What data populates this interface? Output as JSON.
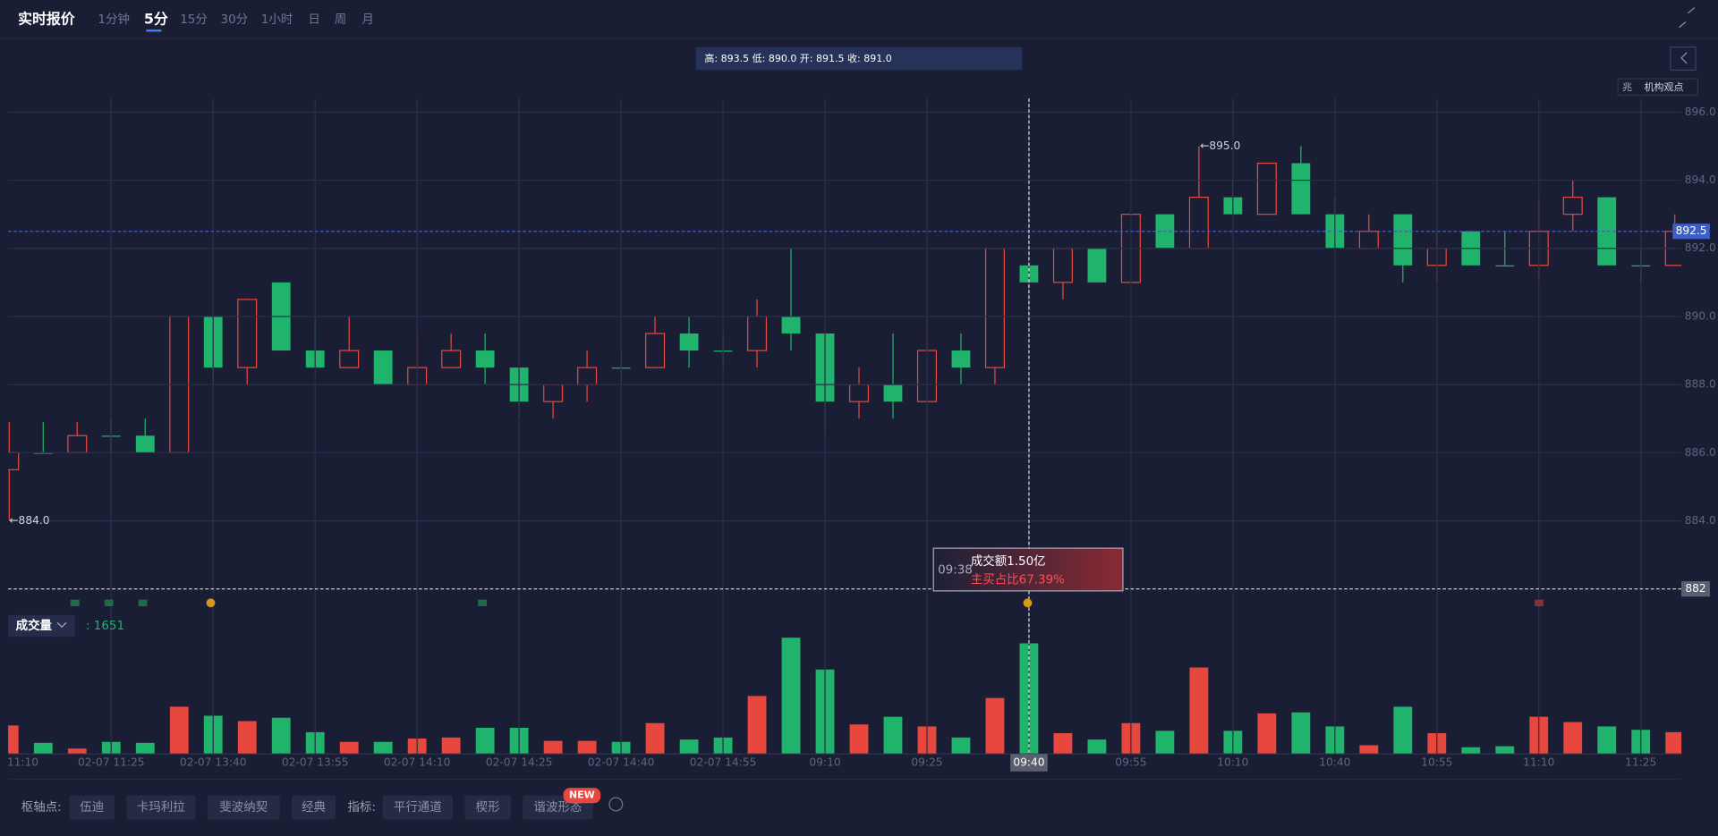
{
  "toolbar": {
    "title": "实时报价",
    "periods": [
      "1分钟",
      "5分",
      "15分",
      "30分",
      "1小时",
      "日",
      "周",
      "月"
    ]
  },
  "info_bar": "高: 893.5 低: 890.0 开: 891.5 收: 891.0",
  "side_panel": {
    "icon": "兆",
    "label": "机构观点"
  },
  "chart_data": {
    "type": "candlestick",
    "categories": [
      "11:10",
      null,
      null,
      "02-07 11:25",
      null,
      null,
      "02-07 13:40",
      null,
      null,
      "02-07 13:55",
      null,
      null,
      "02-07 14:10",
      null,
      null,
      "02-07 14:25",
      null,
      null,
      "02-07 14:40",
      null,
      null,
      "02-07 14:55",
      null,
      null,
      "09:10",
      null,
      null,
      "09:25",
      null,
      null,
      "09:40",
      null,
      null,
      "09:55",
      null,
      null,
      "10:10",
      null,
      null,
      "10:40",
      null,
      null,
      "10:55",
      null,
      null,
      "11:10",
      null,
      null,
      "11:25",
      null
    ],
    "open": [
      885.5,
      886.0,
      886.0,
      886.5,
      886.5,
      886.0,
      890.0,
      888.5,
      891.0,
      889.0,
      888.5,
      889.0,
      888.0,
      888.5,
      889.0,
      888.5,
      887.5,
      888.0,
      888.5,
      888.5,
      889.5,
      889.0,
      889.0,
      890.0,
      889.5,
      887.5,
      888.0,
      887.5,
      889.0,
      888.5,
      891.5,
      891.0,
      892.0,
      891.0,
      893.0,
      892.0,
      893.5,
      893.0,
      894.5,
      893.0,
      892.0,
      893.0,
      891.5,
      892.5,
      891.5,
      891.5,
      893.0,
      893.5,
      891.5,
      891.5
    ],
    "close": [
      886.0,
      886.0,
      886.5,
      886.5,
      886.0,
      890.0,
      888.5,
      890.5,
      889.0,
      888.5,
      889.0,
      888.0,
      888.5,
      889.0,
      888.5,
      887.5,
      888.0,
      888.5,
      888.5,
      889.5,
      889.0,
      889.0,
      890.0,
      889.5,
      887.5,
      888.0,
      887.5,
      889.0,
      888.5,
      892.0,
      891.0,
      892.0,
      891.0,
      893.0,
      892.0,
      893.5,
      893.0,
      894.5,
      893.0,
      892.0,
      892.5,
      891.5,
      892.0,
      891.5,
      891.5,
      892.5,
      893.5,
      891.5,
      891.5,
      892.5
    ],
    "high": [
      886.9,
      886.9,
      886.9,
      887.0,
      887.0,
      890.0,
      890.0,
      890.5,
      891.0,
      890.0,
      890.0,
      889.0,
      889.5,
      889.5,
      889.5,
      888.5,
      888.0,
      889.0,
      889.0,
      890.0,
      890.0,
      889.5,
      890.5,
      892.0,
      889.5,
      888.5,
      889.5,
      890.0,
      889.5,
      892.0,
      893.5,
      892.0,
      892.0,
      893.0,
      893.0,
      895.0,
      894.0,
      894.5,
      895.0,
      893.5,
      893.0,
      893.0,
      892.5,
      892.5,
      892.5,
      893.5,
      894.0,
      893.5,
      892.0,
      893.0
    ],
    "low": [
      884.0,
      886.0,
      886.0,
      886.0,
      886.0,
      886.0,
      888.0,
      888.0,
      889.0,
      888.5,
      888.5,
      888.0,
      888.0,
      888.5,
      888.0,
      887.0,
      887.0,
      887.5,
      888.0,
      888.5,
      888.5,
      888.5,
      888.5,
      889.0,
      886.5,
      887.0,
      887.0,
      887.5,
      888.0,
      888.0,
      890.0,
      890.5,
      891.0,
      891.0,
      892.0,
      892.0,
      893.0,
      893.0,
      893.0,
      892.0,
      892.0,
      891.0,
      891.0,
      891.5,
      891.5,
      891.0,
      892.5,
      891.5,
      891.0,
      891.5
    ],
    "volume": [
      425,
      165,
      80,
      180,
      165,
      705,
      570,
      490,
      540,
      325,
      180,
      180,
      230,
      245,
      390,
      390,
      195,
      195,
      180,
      460,
      215,
      245,
      865,
      1735,
      1260,
      440,
      555,
      410,
      245,
      835,
      1651,
      310,
      215,
      460,
      345,
      1290,
      345,
      605,
      620,
      410,
      130,
      705,
      310,
      100,
      115,
      555,
      475,
      410,
      360,
      325
    ],
    "up_color": "#e8473d",
    "down_color": "#1fb36b",
    "ylim": [
      881.3,
      896.4
    ],
    "yticks": [
      {
        "value": 884,
        "label": "884.0"
      },
      {
        "value": 886,
        "label": "886.0"
      },
      {
        "value": 888,
        "label": "888.0"
      },
      {
        "value": 890,
        "label": "890.0"
      },
      {
        "value": 892,
        "label": "892.0"
      },
      {
        "value": 894,
        "label": "894.0"
      },
      {
        "value": 896,
        "label": "896.0"
      }
    ],
    "volume_ylim": [
      0,
      1780
    ],
    "grid": true,
    "last_price": 892.5,
    "crosshair_price": 882,
    "crosshair_time": "09:40",
    "high_label": "←895.0",
    "low_label": "←884.0",
    "volume_label": "成交量",
    "volume_readout": ": 1651",
    "tooltip": {
      "time": "09:38",
      "amount": "成交额1.50亿",
      "buy_ratio": "主买占比67.39%"
    }
  },
  "footer": {
    "pivot_label": "枢轴点:",
    "pivots": [
      "伍迪",
      "卡玛利拉",
      "斐波纳契",
      "经典"
    ],
    "indicator_label": "指标:",
    "indicators": [
      "平行通道",
      "楔形",
      "谐波形态"
    ],
    "badge": "NEW"
  }
}
